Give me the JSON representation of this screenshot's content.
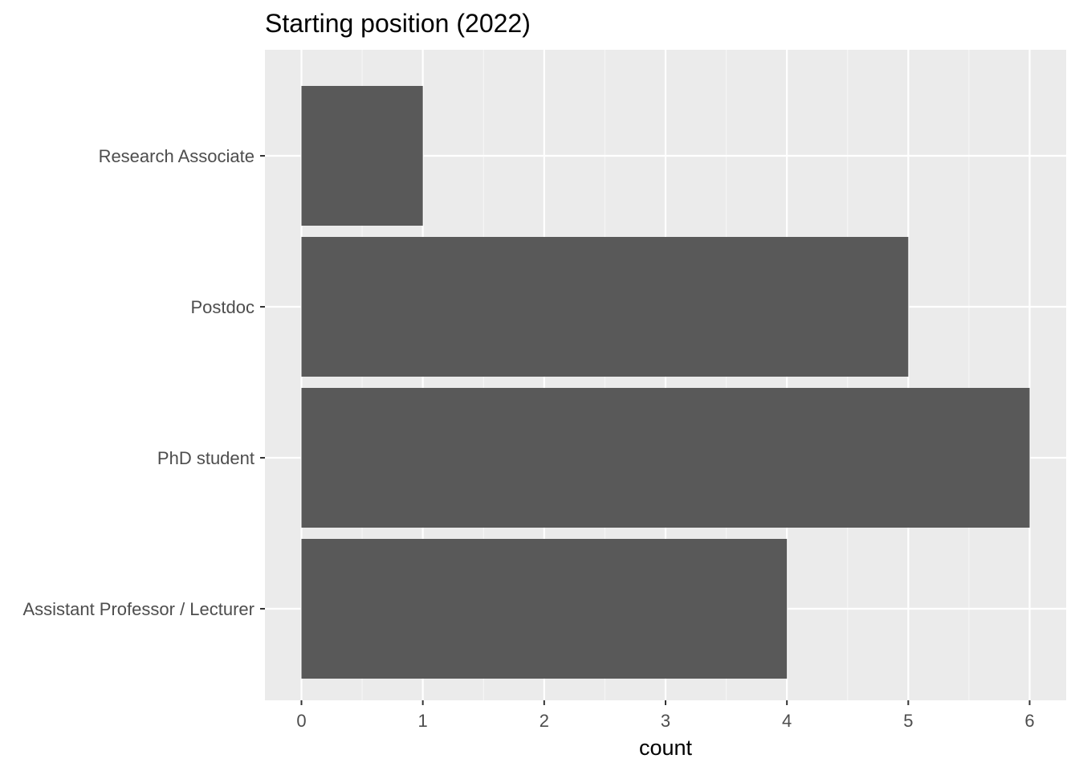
{
  "chart_data": {
    "type": "bar",
    "orientation": "horizontal",
    "title": "Starting position (2022)",
    "xlabel": "count",
    "ylabel": "",
    "categories": [
      "Assistant Professor / Lecturer",
      "PhD student",
      "Postdoc",
      "Research Associate"
    ],
    "values": [
      4,
      6,
      5,
      1
    ],
    "xlim": [
      0,
      6
    ],
    "xticks": [
      "0",
      "1",
      "2",
      "3",
      "4",
      "5",
      "6"
    ],
    "grid": true,
    "legend": "none",
    "bar_color": "#595959",
    "panel_color": "#ebebeb",
    "grid_color": "#ffffff"
  }
}
